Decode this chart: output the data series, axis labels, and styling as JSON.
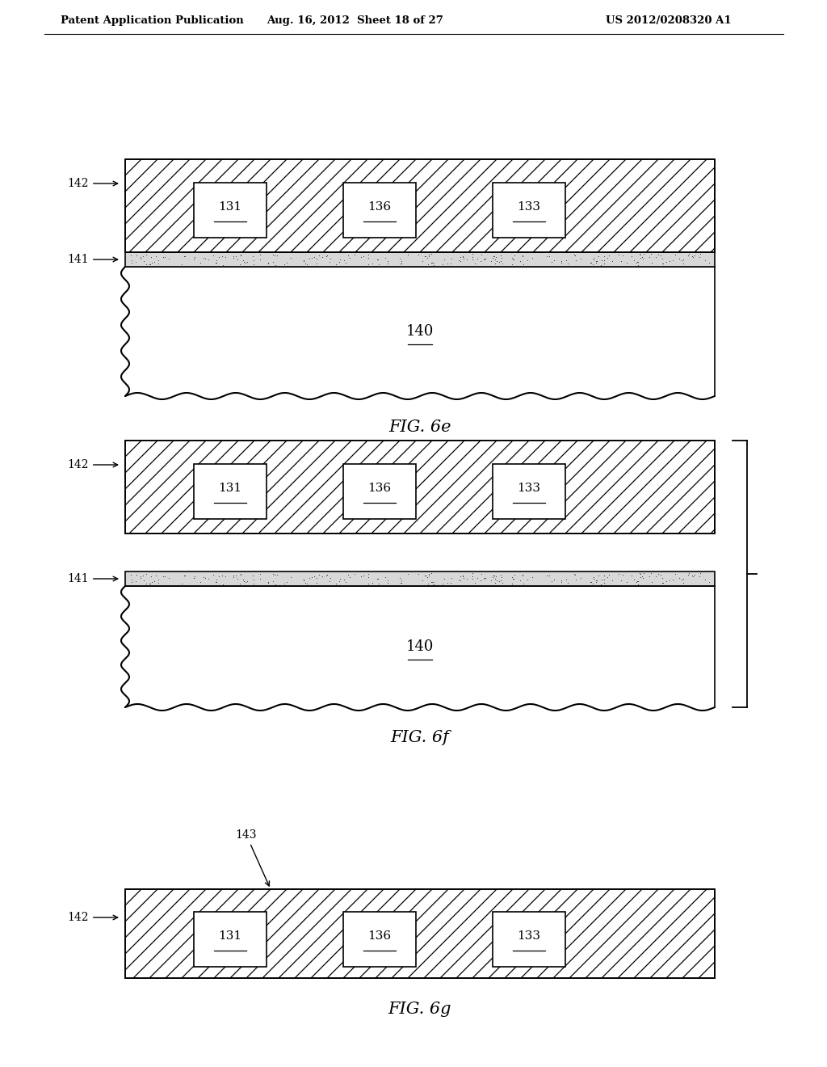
{
  "bg_color": "#ffffff",
  "header_left": "Patent Application Publication",
  "header_mid": "Aug. 16, 2012  Sheet 18 of 27",
  "header_right": "US 2012/0208320 A1",
  "fig_e_label": "FIG. 6e",
  "fig_f_label": "FIG. 6f",
  "fig_g_label": "FIG. 6g",
  "box_labels": [
    "131",
    "136",
    "133"
  ],
  "label_142": "142",
  "label_141": "141",
  "label_140": "140",
  "label_143": "143"
}
